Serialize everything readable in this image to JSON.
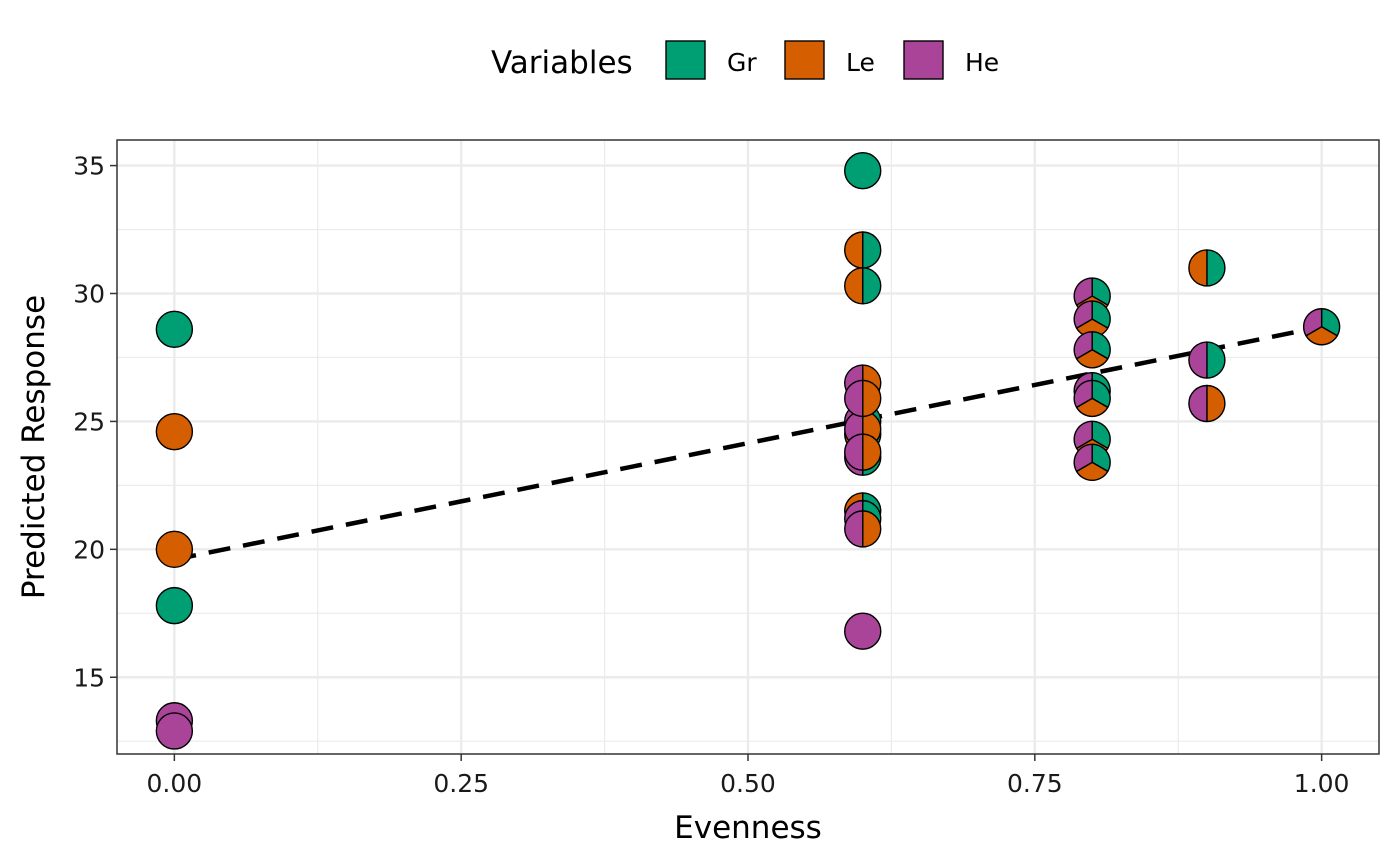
{
  "chart_data": {
    "type": "scatter",
    "marker": "pie-glyph",
    "xlabel": "Evenness",
    "ylabel": "Predicted Response",
    "xlim": [
      -0.05,
      1.05
    ],
    "ylim": [
      12,
      36
    ],
    "x_ticks": [
      0.0,
      0.25,
      0.5,
      0.75,
      1.0
    ],
    "x_tick_labels": [
      "0.00",
      "0.25",
      "0.50",
      "0.75",
      "1.00"
    ],
    "y_ticks": [
      15,
      20,
      25,
      30,
      35
    ],
    "y_tick_labels": [
      "15",
      "20",
      "25",
      "30",
      "35"
    ],
    "grid": true,
    "legend": {
      "title": "Variables",
      "position": "top",
      "items": [
        {
          "key": "Gr",
          "label": "Gr",
          "color": "#009E73"
        },
        {
          "key": "Le",
          "label": "Le",
          "color": "#D55E00"
        },
        {
          "key": "He",
          "label": "He",
          "color": "#AA4499"
        }
      ]
    },
    "points": [
      {
        "x": 0.0,
        "y": 28.6,
        "props": {
          "Gr": 1,
          "Le": 0,
          "He": 0
        }
      },
      {
        "x": 0.0,
        "y": 24.6,
        "props": {
          "Gr": 0,
          "Le": 1,
          "He": 0
        }
      },
      {
        "x": 0.0,
        "y": 20.0,
        "props": {
          "Gr": 0,
          "Le": 1,
          "He": 0
        }
      },
      {
        "x": 0.0,
        "y": 17.8,
        "props": {
          "Gr": 1,
          "Le": 0,
          "He": 0
        }
      },
      {
        "x": 0.0,
        "y": 13.3,
        "props": {
          "Gr": 0,
          "Le": 0,
          "He": 1
        }
      },
      {
        "x": 0.0,
        "y": 12.9,
        "props": {
          "Gr": 0,
          "Le": 0,
          "He": 1
        }
      },
      {
        "x": 0.6,
        "y": 34.8,
        "props": {
          "Gr": 1,
          "Le": 0,
          "He": 0
        }
      },
      {
        "x": 0.6,
        "y": 31.7,
        "props": {
          "Gr": 0.5,
          "Le": 0.5,
          "He": 0
        }
      },
      {
        "x": 0.6,
        "y": 30.3,
        "props": {
          "Gr": 0.5,
          "Le": 0.5,
          "He": 0
        }
      },
      {
        "x": 0.6,
        "y": 26.5,
        "props": {
          "Gr": 0,
          "Le": 0.5,
          "He": 0.5
        }
      },
      {
        "x": 0.6,
        "y": 25.0,
        "props": {
          "Gr": 0.5,
          "Le": 0,
          "He": 0.5
        }
      },
      {
        "x": 0.6,
        "y": 24.5,
        "props": {
          "Gr": 0.5,
          "Le": 0.5,
          "He": 0
        }
      },
      {
        "x": 0.6,
        "y": 24.7,
        "props": {
          "Gr": 0,
          "Le": 0.5,
          "He": 0.5
        }
      },
      {
        "x": 0.6,
        "y": 23.6,
        "props": {
          "Gr": 0.5,
          "Le": 0,
          "He": 0.5
        }
      },
      {
        "x": 0.6,
        "y": 25.9,
        "props": {
          "Gr": 0,
          "Le": 0.5,
          "He": 0.5
        }
      },
      {
        "x": 0.6,
        "y": 23.8,
        "props": {
          "Gr": 0,
          "Le": 0.5,
          "He": 0.5
        }
      },
      {
        "x": 0.6,
        "y": 21.5,
        "props": {
          "Gr": 0.5,
          "Le": 0.5,
          "He": 0
        }
      },
      {
        "x": 0.6,
        "y": 21.2,
        "props": {
          "Gr": 0.5,
          "Le": 0,
          "He": 0.5
        }
      },
      {
        "x": 0.6,
        "y": 20.8,
        "props": {
          "Gr": 0,
          "Le": 0.5,
          "He": 0.5
        }
      },
      {
        "x": 0.6,
        "y": 16.8,
        "props": {
          "Gr": 0,
          "Le": 0,
          "He": 1
        }
      },
      {
        "x": 0.8,
        "y": 29.9,
        "props": {
          "Gr": 0.3333,
          "Le": 0.3333,
          "He": 0.3333
        }
      },
      {
        "x": 0.8,
        "y": 29.0,
        "props": {
          "Gr": 0.3333,
          "Le": 0.3333,
          "He": 0.3333
        }
      },
      {
        "x": 0.8,
        "y": 27.8,
        "props": {
          "Gr": 0.3333,
          "Le": 0.3333,
          "He": 0.3333
        }
      },
      {
        "x": 0.8,
        "y": 26.2,
        "props": {
          "Gr": 0.3333,
          "Le": 0.3333,
          "He": 0.3333
        }
      },
      {
        "x": 0.8,
        "y": 25.9,
        "props": {
          "Gr": 0.3333,
          "Le": 0.3333,
          "He": 0.3333
        }
      },
      {
        "x": 0.8,
        "y": 24.3,
        "props": {
          "Gr": 0.3333,
          "Le": 0.3333,
          "He": 0.3333
        }
      },
      {
        "x": 0.8,
        "y": 23.4,
        "props": {
          "Gr": 0.3333,
          "Le": 0.3333,
          "He": 0.3333
        }
      },
      {
        "x": 0.9,
        "y": 31.0,
        "props": {
          "Gr": 0.5,
          "Le": 0.5,
          "He": 0
        }
      },
      {
        "x": 0.9,
        "y": 27.4,
        "props": {
          "Gr": 0.5,
          "Le": 0,
          "He": 0.5
        }
      },
      {
        "x": 0.9,
        "y": 25.7,
        "props": {
          "Gr": 0,
          "Le": 0.5,
          "He": 0.5
        }
      },
      {
        "x": 1.0,
        "y": 28.7,
        "props": {
          "Gr": 0.3333,
          "Le": 0.3333,
          "He": 0.3333
        }
      }
    ],
    "trend_line": {
      "style": "dashed",
      "color": "#000000",
      "x": [
        0.0,
        1.0
      ],
      "y": [
        19.6,
        28.7
      ]
    }
  }
}
